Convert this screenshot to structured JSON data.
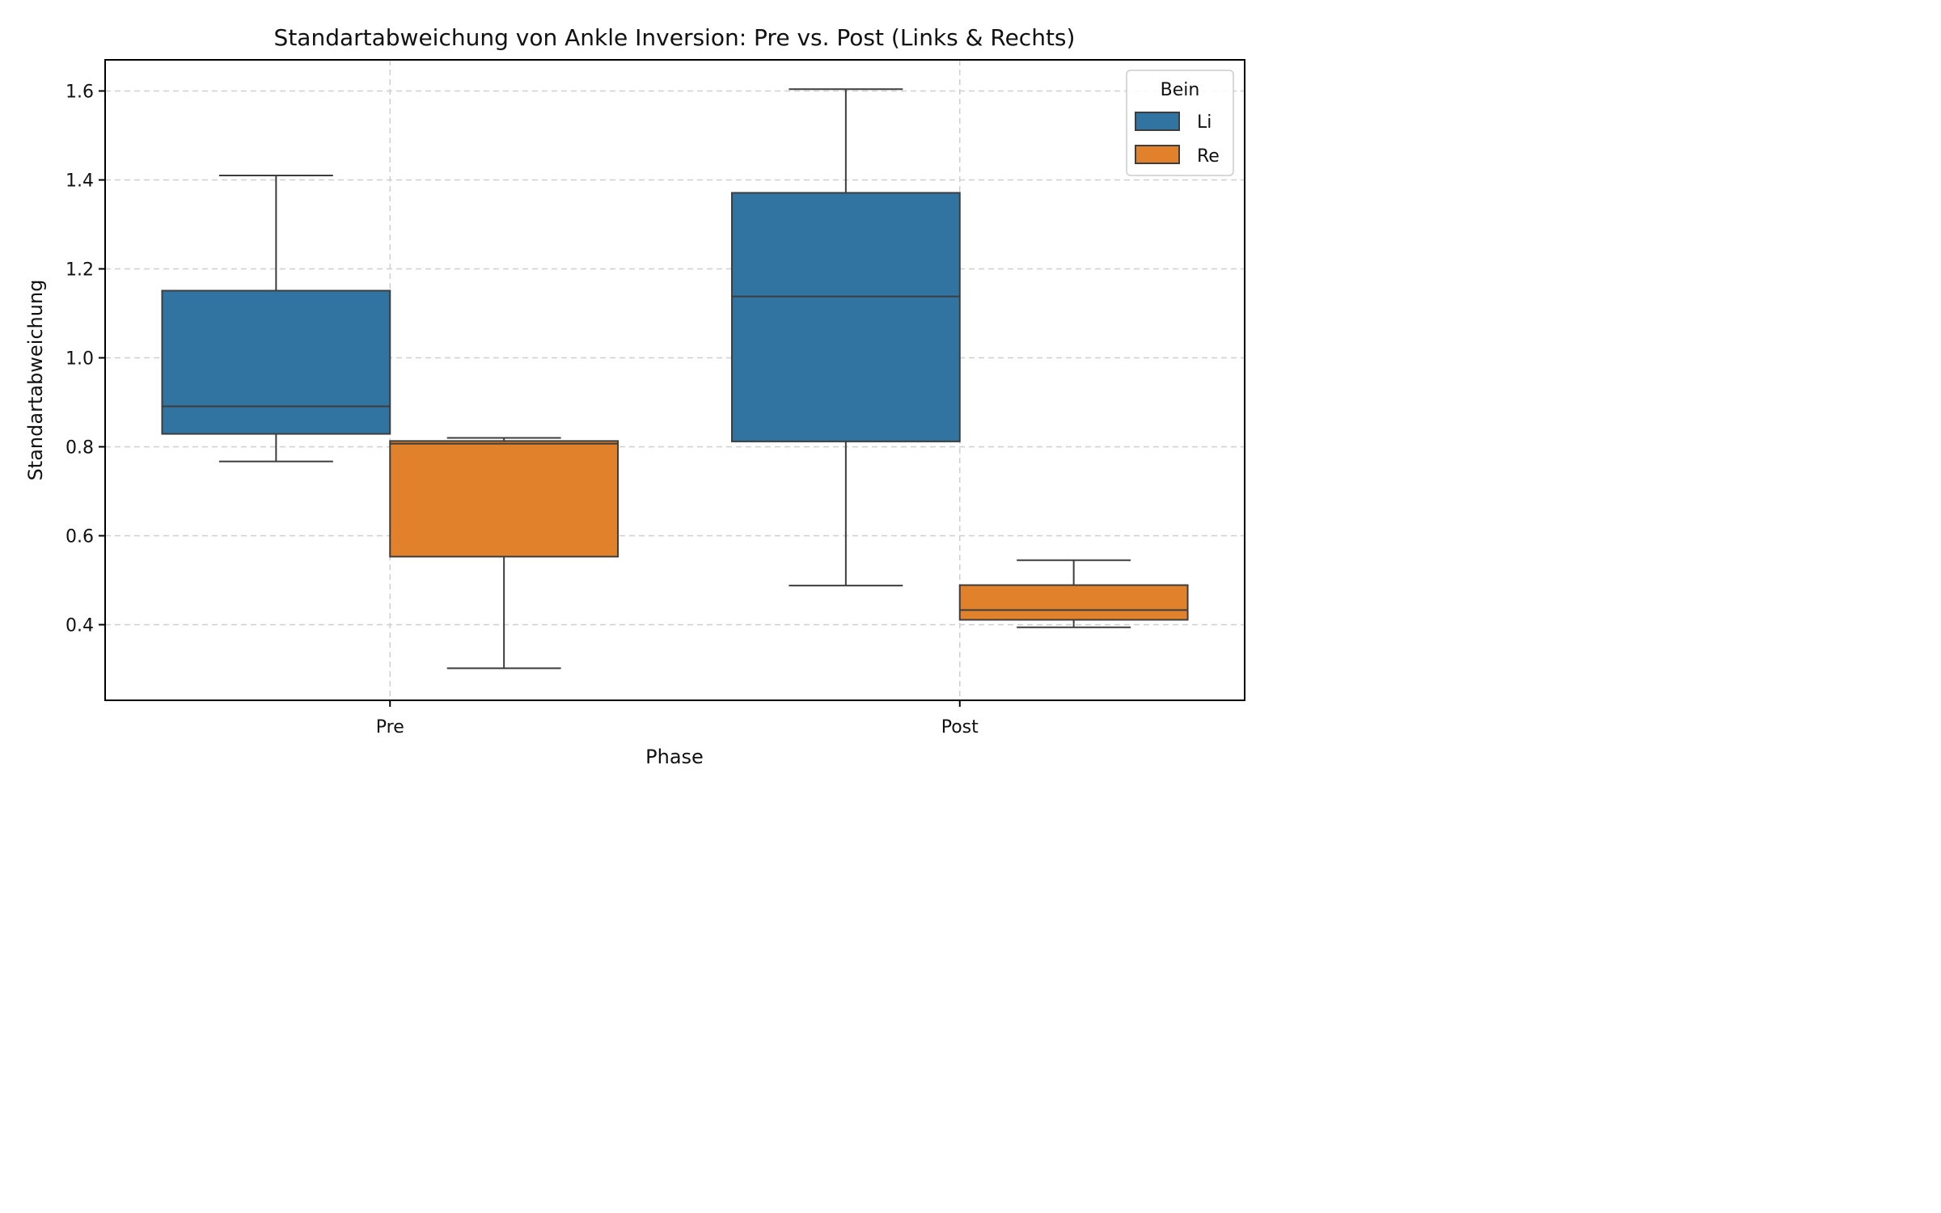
{
  "chart_data": {
    "type": "box",
    "title": "Standartabweichung von Ankle Inversion: Pre vs. Post (Links & Rechts)",
    "xlabel": "Phase",
    "ylabel": "Standartabweichung",
    "categories": [
      "Pre",
      "Post"
    ],
    "ylim": [
      0.23,
      1.67
    ],
    "yticks": [
      "0.4",
      "0.6",
      "0.8",
      "1.0",
      "1.2",
      "1.4",
      "1.6"
    ],
    "grid": true,
    "legend": {
      "title": "Bein",
      "placement": "top-right"
    },
    "series": [
      {
        "name": "Li",
        "color": "#3274a1",
        "boxes": [
          {
            "category": "Pre",
            "whisker_low": 0.767,
            "q1": 0.829,
            "median": 0.891,
            "q3": 1.151,
            "whisker_high": 1.41
          },
          {
            "category": "Post",
            "whisker_low": 0.488,
            "q1": 0.812,
            "median": 1.138,
            "q3": 1.371,
            "whisker_high": 1.604
          }
        ]
      },
      {
        "name": "Re",
        "color": "#e1812c",
        "boxes": [
          {
            "category": "Pre",
            "whisker_low": 0.302,
            "q1": 0.553,
            "median": 0.807,
            "q3": 0.813,
            "whisker_high": 0.82
          },
          {
            "category": "Post",
            "whisker_low": 0.394,
            "q1": 0.411,
            "median": 0.433,
            "q3": 0.489,
            "whisker_high": 0.545
          }
        ]
      }
    ]
  }
}
